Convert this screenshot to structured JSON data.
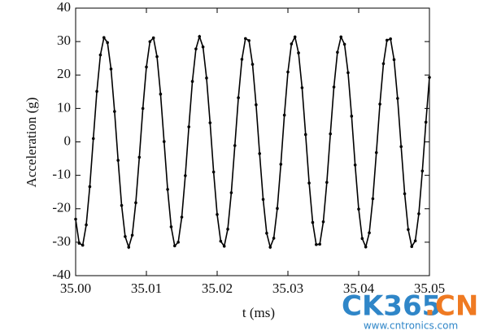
{
  "chart_data": {
    "type": "line",
    "xlabel": "t (ms)",
    "ylabel": "Acceleration (g)",
    "x": [
      35,
      35.0005,
      35.001,
      35.0015,
      35.002,
      35.0025,
      35.003,
      35.0035,
      35.004,
      35.0045,
      35.005,
      35.0055,
      35.006,
      35.0065,
      35.007,
      35.0075,
      35.008,
      35.0085,
      35.009,
      35.0095,
      35.01,
      35.0105,
      35.011,
      35.0115,
      35.012,
      35.0125,
      35.013,
      35.0135,
      35.014,
      35.0145,
      35.015,
      35.0155,
      35.016,
      35.0165,
      35.017,
      35.0175,
      35.018,
      35.0185,
      35.019,
      35.0195,
      35.02,
      35.0205,
      35.021,
      35.0215,
      35.022,
      35.0225,
      35.023,
      35.0235,
      35.024,
      35.0245,
      35.025,
      35.0255,
      35.026,
      35.0265,
      35.027,
      35.0275,
      35.028,
      35.0285,
      35.029,
      35.0295,
      35.03,
      35.0305,
      35.031,
      35.0315,
      35.032,
      35.0325,
      35.033,
      35.0335,
      35.034,
      35.0345,
      35.035,
      35.0355,
      35.036,
      35.0365,
      35.037,
      35.0375,
      35.038,
      35.0385,
      35.039,
      35.0395,
      35.04,
      35.0405,
      35.041,
      35.0415,
      35.042,
      35.0425,
      35.043,
      35.0435,
      35.044,
      35.0445,
      35.045,
      35.0455,
      35.046,
      35.0465,
      35.047,
      35.0475,
      35.048,
      35.0485,
      35.049,
      35.0495,
      35.05
    ],
    "values": [
      -23.1,
      -30.3,
      -30.9,
      -24.8,
      -13.4,
      1.0,
      15.1,
      26.0,
      31.2,
      29.7,
      21.8,
      9.1,
      -5.5,
      -19.0,
      -28.3,
      -31.5,
      -27.9,
      -18.2,
      -4.6,
      10.0,
      22.4,
      30.0,
      31.1,
      25.5,
      14.3,
      0.1,
      -14.2,
      -25.4,
      -31.1,
      -30.0,
      -22.5,
      -10.1,
      4.5,
      18.1,
      27.8,
      31.5,
      28.4,
      19.1,
      5.7,
      -9.0,
      -21.7,
      -29.7,
      -31.2,
      -26.1,
      -15.2,
      -1.1,
      13.2,
      24.7,
      30.9,
      30.3,
      23.2,
      11.1,
      -3.5,
      -17.2,
      -27.3,
      -31.5,
      -28.8,
      -19.9,
      -6.7,
      8.0,
      20.9,
      29.3,
      31.4,
      26.6,
      16.2,
      2.2,
      -12.3,
      -24.1,
      -30.7,
      -30.6,
      -23.9,
      -12.1,
      2.4,
      16.4,
      26.8,
      31.4,
      29.2,
      20.7,
      7.7,
      -6.9,
      -20.1,
      -28.9,
      -31.4,
      -27.2,
      -17.0,
      -3.2,
      11.3,
      23.4,
      30.4,
      30.8,
      24.6,
      13.0,
      -1.4,
      -15.5,
      -26.2,
      -31.3,
      -29.6,
      -21.5,
      -8.7,
      5.9,
      19.3
    ],
    "color": "#000000",
    "xlim": [
      35,
      35.05
    ],
    "xticks": [
      {
        "value": 35,
        "label": "35.00"
      },
      {
        "value": 35.01,
        "label": "35.01"
      },
      {
        "value": 35.02,
        "label": "35.02"
      },
      {
        "value": 35.03,
        "label": "35.03"
      },
      {
        "value": 35.04,
        "label": "35.04"
      },
      {
        "value": 35.05,
        "label": "35.05"
      }
    ],
    "ylim": [
      -40,
      40
    ],
    "yticks": [
      -40,
      -30,
      -20,
      -10,
      0,
      10,
      20,
      30,
      40
    ],
    "grid": false,
    "watermark": {
      "brand": "CK365",
      "suffix": ".CN",
      "url": "www.cntronics.com"
    }
  }
}
